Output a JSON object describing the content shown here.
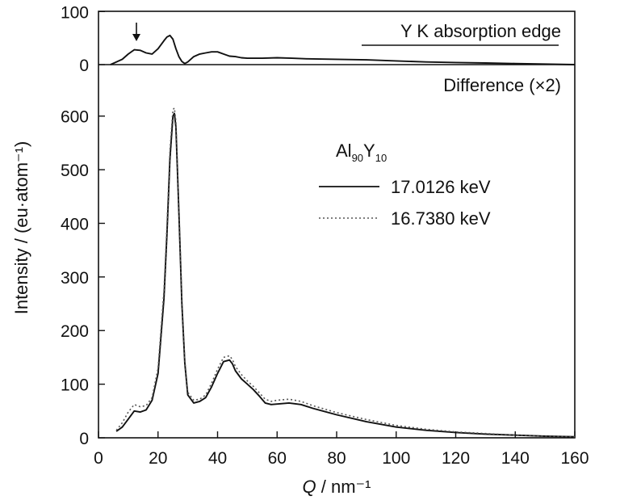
{
  "chart_data": {
    "type": "line",
    "title": "",
    "xlabel": "Q / nm⁻¹",
    "xlabel_var": "Q",
    "xlabel_unit": " / nm⁻¹",
    "ylabel": "Intensity / (eu·atom⁻¹)",
    "xlim": [
      0,
      160
    ],
    "ylim": [
      0,
      660
    ],
    "x_ticks": [
      "0",
      "20",
      "40",
      "60",
      "80",
      "100",
      "120",
      "140",
      "160"
    ],
    "y_ticks": [
      "0",
      "100",
      "200",
      "300",
      "400",
      "500",
      "600"
    ],
    "top_ticks": [
      "0",
      "100"
    ],
    "grid": false,
    "legend_title": "Al₉₀Y₁₀",
    "legend_title_parts": {
      "base1": "Al",
      "sub1": "90",
      "base2": "Y",
      "sub2": "10"
    },
    "legend_position": "top-right",
    "annotations": {
      "edge_label": "Y K absorption edge",
      "difference_label": "Difference (×2)"
    },
    "series": [
      {
        "name": "17.0126 keV",
        "style": "solid",
        "color": "#111111",
        "x": [
          6,
          8,
          10,
          12,
          14,
          16,
          18,
          20,
          22,
          23,
          24,
          25,
          25.5,
          26,
          27,
          28,
          29,
          30,
          32,
          34,
          36,
          38,
          40,
          42,
          44,
          45,
          46,
          48,
          50,
          52,
          54,
          56,
          58,
          60,
          64,
          68,
          72,
          80,
          90,
          100,
          110,
          120,
          130,
          140,
          150,
          160
        ],
        "y": [
          12,
          20,
          35,
          50,
          48,
          52,
          70,
          120,
          260,
          380,
          520,
          600,
          605,
          580,
          420,
          250,
          140,
          80,
          65,
          68,
          75,
          95,
          120,
          142,
          145,
          138,
          125,
          110,
          100,
          90,
          78,
          65,
          62,
          63,
          65,
          62,
          55,
          43,
          30,
          20,
          14,
          10,
          7,
          5,
          3,
          2
        ]
      },
      {
        "name": "16.7380 keV",
        "style": "dotted",
        "color": "#555555",
        "x": [
          6,
          8,
          10,
          12,
          14,
          16,
          18,
          20,
          22,
          23,
          24,
          25,
          25.5,
          26,
          27,
          28,
          29,
          30,
          32,
          34,
          36,
          38,
          40,
          42,
          44,
          45,
          46,
          48,
          50,
          52,
          54,
          56,
          58,
          60,
          64,
          68,
          72,
          80,
          90,
          100,
          110,
          120,
          130,
          140,
          150,
          160
        ],
        "y": [
          14,
          28,
          48,
          62,
          58,
          60,
          75,
          130,
          275,
          395,
          535,
          612,
          615,
          590,
          430,
          258,
          145,
          85,
          70,
          72,
          80,
          102,
          128,
          150,
          153,
          146,
          133,
          118,
          106,
          96,
          84,
          72,
          68,
          70,
          72,
          68,
          60,
          47,
          34,
          23,
          16,
          11,
          8,
          5,
          3,
          2
        ]
      },
      {
        "name": "Difference (×2)",
        "style": "solid",
        "color": "#111111",
        "panel": "top",
        "x": [
          4,
          6,
          8,
          10,
          12,
          14,
          16,
          18,
          20,
          22,
          23,
          24,
          25,
          26,
          27,
          28,
          29,
          30,
          32,
          34,
          36,
          38,
          40,
          42,
          44,
          46,
          48,
          50,
          55,
          60,
          65,
          70,
          80,
          90,
          100,
          110,
          120,
          130,
          140,
          150,
          160
        ],
        "y": [
          0,
          5,
          10,
          20,
          28,
          27,
          22,
          20,
          30,
          45,
          52,
          55,
          48,
          30,
          15,
          6,
          2,
          5,
          15,
          20,
          22,
          24,
          24,
          20,
          16,
          15,
          13,
          12,
          12,
          13,
          12,
          11,
          10,
          9,
          7,
          5,
          4,
          3,
          2,
          1,
          0
        ]
      }
    ]
  }
}
